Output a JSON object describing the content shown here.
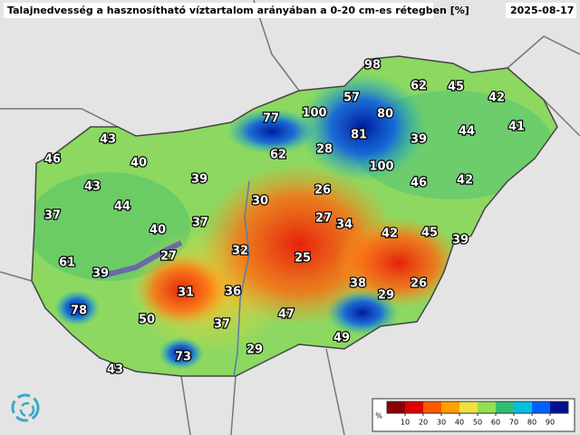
{
  "title": "Talajnedvesség a hasznosítható víztartalom arányában a 0-20 cm-es rétegben [%]",
  "date": "2025-08-17",
  "stations": [
    98,
    62,
    45,
    42,
    77,
    100,
    57,
    80,
    41,
    43,
    81,
    39,
    44,
    62,
    28,
    46,
    40,
    100,
    39,
    43,
    26,
    46,
    42,
    30,
    44,
    37,
    27,
    34,
    37,
    40,
    42,
    45,
    39,
    27,
    32,
    25,
    61,
    39,
    38,
    26,
    29,
    31,
    36,
    78,
    47,
    50,
    37,
    49,
    29,
    73,
    43
  ],
  "legend": {
    "unit": "%",
    "lim": [
      0,
      100
    ],
    "ticks": [
      10,
      20,
      30,
      40,
      50,
      60,
      70,
      80,
      90
    ],
    "colors": [
      "#8b0000",
      "#e00000",
      "#ff5a00",
      "#ffa000",
      "#f0e040",
      "#90e050",
      "#30c070",
      "#00c0e0",
      "#0060ff",
      "#001090"
    ]
  }
}
